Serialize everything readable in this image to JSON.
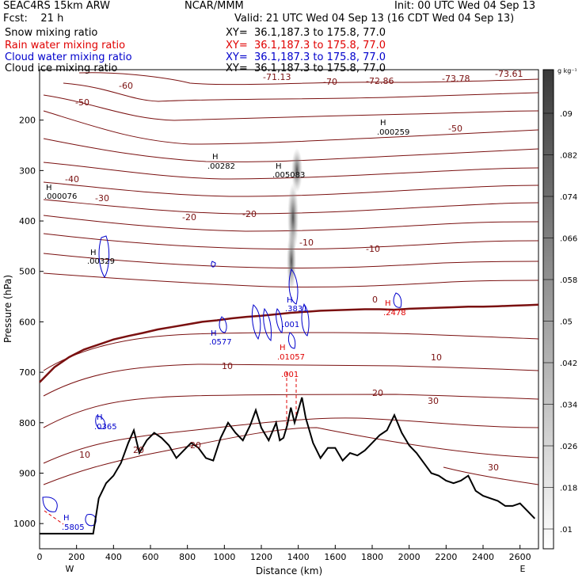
{
  "header": {
    "line1_left": "SEAC4RS 15km ARW",
    "line1_center": "NCAR/MMM",
    "line1_right": "Init: 00 UTC Wed 04 Sep 13",
    "line2_left": "Fcst:    21 h",
    "line2_right": "Valid: 21 UTC Wed 04 Sep 13 (16 CDT Wed 04 Sep 13)",
    "fields": [
      {
        "name": "Snow mixing ratio",
        "xy": "XY=  36.1,187.3 to 175.8, 77.0",
        "color": "#000000"
      },
      {
        "name": "Rain water mixing ratio",
        "xy": "XY=  36.1,187.3 to 175.8, 77.0",
        "color": "#e00000"
      },
      {
        "name": "Cloud water mixing ratio",
        "xy": "XY=  36.1,187.3 to 175.8, 77.0",
        "color": "#0000cc"
      },
      {
        "name": "Cloud ice mixing ratio",
        "xy": "XY=  36.1,187.3 to 175.8, 77.0",
        "color": "#000000"
      }
    ]
  },
  "chart_data": {
    "type": "contour-cross-section",
    "xlabel": "Distance (km)",
    "ylabel": "Pressure (hPa)",
    "xlim": [
      0,
      2700
    ],
    "ylim": [
      1050,
      100
    ],
    "x_ticks": [
      0,
      200,
      400,
      600,
      800,
      1000,
      1200,
      1400,
      1600,
      1800,
      2000,
      2200,
      2400,
      2600
    ],
    "y_ticks": [
      200,
      300,
      400,
      500,
      600,
      700,
      800,
      900,
      1000
    ],
    "endpoint_left": "W",
    "endpoint_right": "E",
    "colorbar": {
      "unit": "g kg⁻¹",
      "ticks": [
        ".09",
        ".082",
        ".074",
        ".066",
        ".058",
        ".05",
        ".042",
        ".034",
        ".026",
        ".018",
        ".01"
      ]
    },
    "temperature_labels": [
      "-60",
      "-50",
      "-40",
      "-30",
      "-20",
      "-10",
      "0",
      "10",
      "20",
      "30",
      "-70",
      "-50",
      "-20",
      "-10",
      "10",
      "20",
      "30",
      "-71.13",
      "-72.86",
      "-73.78",
      "-73.61",
      "10",
      "20"
    ],
    "extrema_labels": [
      {
        "h": "H",
        "value": ".000259"
      },
      {
        "h": "H",
        "value": ".00282"
      },
      {
        "h": "H",
        "value": ".005083"
      },
      {
        "h": "H",
        "value": ".000076"
      },
      {
        "h": "H",
        "value": ".00329"
      },
      {
        "h": "H",
        "value": ".0577"
      },
      {
        "h": "H",
        "value": ".3831"
      },
      {
        "h": "H",
        "value": ".001"
      },
      {
        "h": "H",
        "value": ".01057"
      },
      {
        "h": "H",
        "value": ".001"
      },
      {
        "h": "H",
        "value": ".2478"
      },
      {
        "h": "H",
        "value": ".0365"
      },
      {
        "h": "H",
        "value": ".5805"
      }
    ],
    "terrain": {
      "distance_km": [
        0,
        290,
        320,
        360,
        400,
        440,
        480,
        510,
        540,
        580,
        620,
        660,
        700,
        740,
        780,
        820,
        860,
        900,
        940,
        980,
        1020,
        1060,
        1100,
        1140,
        1170,
        1200,
        1240,
        1280,
        1300,
        1320,
        1340,
        1360,
        1380,
        1420,
        1440,
        1480,
        1520,
        1560,
        1600,
        1640,
        1680,
        1720,
        1760,
        1800,
        1840,
        1880,
        1920,
        1960,
        2000,
        2040,
        2080,
        2120,
        2160,
        2200,
        2240,
        2280,
        2320,
        2360,
        2400,
        2440,
        2480,
        2520,
        2560,
        2600,
        2640,
        2680
      ],
      "pressure_hpa": [
        1020,
        1020,
        950,
        920,
        905,
        880,
        840,
        815,
        860,
        835,
        820,
        830,
        845,
        870,
        855,
        840,
        850,
        870,
        875,
        830,
        800,
        820,
        835,
        805,
        775,
        810,
        835,
        800,
        835,
        830,
        805,
        770,
        800,
        750,
        790,
        840,
        870,
        850,
        850,
        875,
        860,
        865,
        855,
        840,
        825,
        815,
        785,
        820,
        845,
        860,
        880,
        900,
        905,
        915,
        920,
        915,
        905,
        935,
        945,
        950,
        955,
        965,
        965,
        960,
        975,
        990
      ]
    },
    "freezing_level": {
      "distance_km": [
        0,
        80,
        160,
        240,
        320,
        400,
        480,
        560,
        640,
        720,
        800,
        880,
        960,
        1040,
        1120,
        1200,
        1280,
        1360,
        1440,
        1520,
        1600,
        1680,
        1760,
        1840,
        1920,
        2000,
        2080,
        2160,
        2240,
        2320,
        2400,
        2480,
        2560,
        2640,
        2700
      ],
      "pressure_hpa": [
        720,
        690,
        670,
        655,
        645,
        635,
        628,
        622,
        615,
        610,
        605,
        600,
        597,
        593,
        590,
        588,
        585,
        582,
        580,
        578,
        577,
        576,
        575,
        575,
        576,
        574,
        573,
        572,
        571,
        570,
        570,
        569,
        568,
        567,
        566
      ]
    }
  }
}
